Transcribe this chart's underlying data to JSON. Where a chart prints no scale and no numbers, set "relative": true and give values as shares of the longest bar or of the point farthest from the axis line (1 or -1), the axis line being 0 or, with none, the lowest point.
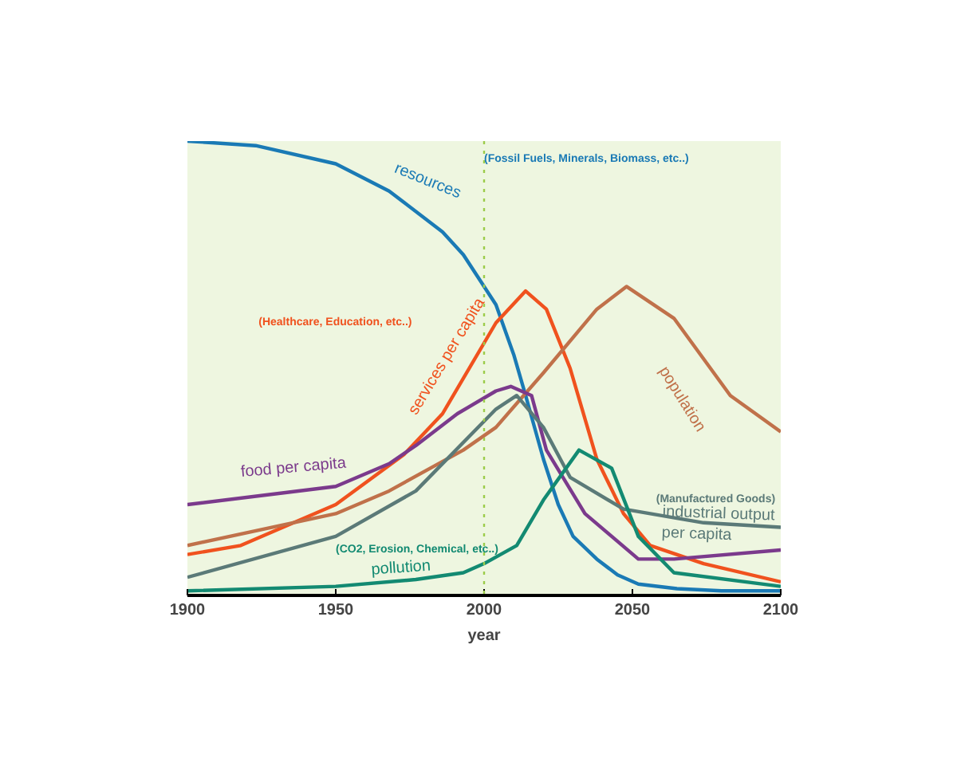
{
  "chart_data": {
    "type": "line",
    "relative": true,
    "xlabel": "year",
    "xlim": [
      1900,
      2100
    ],
    "xticks": [
      1900,
      1950,
      2000,
      2050,
      2100
    ],
    "grid": false,
    "legend": false,
    "line_style": "solid",
    "marker": "none",
    "series": [
      {
        "name": "resources",
        "color": "#1a7ab5",
        "x": [
          1900,
          1923,
          1950,
          1968,
          1986,
          1993,
          2004,
          2010,
          2014,
          2020,
          2025,
          2030,
          2038,
          2045,
          2052,
          2065,
          2080,
          2100
        ],
        "values": [
          1.0,
          0.99,
          0.95,
          0.89,
          0.8,
          0.75,
          0.64,
          0.53,
          0.44,
          0.3,
          0.2,
          0.13,
          0.08,
          0.045,
          0.025,
          0.015,
          0.01,
          0.01
        ]
      },
      {
        "name": "services per capita",
        "color": "#f0521e",
        "x": [
          1900,
          1918,
          1950,
          1973,
          1986,
          2004,
          2014,
          2021,
          2029,
          2038,
          2047,
          2056,
          2074,
          2100
        ],
        "values": [
          0.09,
          0.11,
          0.2,
          0.31,
          0.4,
          0.6,
          0.67,
          0.63,
          0.5,
          0.3,
          0.18,
          0.11,
          0.07,
          0.03
        ]
      },
      {
        "name": "population",
        "color": "#c0714a",
        "x": [
          1900,
          1950,
          1968,
          1993,
          2004,
          2020,
          2038,
          2048,
          2064,
          2083,
          2100
        ],
        "values": [
          0.11,
          0.18,
          0.23,
          0.32,
          0.37,
          0.49,
          0.63,
          0.68,
          0.61,
          0.44,
          0.36
        ]
      },
      {
        "name": "food per capita",
        "color": "#7b3a8c",
        "x": [
          1900,
          1950,
          1968,
          1977,
          1991,
          2004,
          2009,
          2016,
          2021,
          2034,
          2052,
          2064,
          2100
        ],
        "values": [
          0.2,
          0.24,
          0.29,
          0.33,
          0.4,
          0.45,
          0.46,
          0.44,
          0.32,
          0.18,
          0.08,
          0.08,
          0.1
        ]
      },
      {
        "name": "industrial output per capita",
        "color": "#5b7a78",
        "x": [
          1900,
          1950,
          1977,
          2004,
          2011,
          2020,
          2029,
          2047,
          2074,
          2100
        ],
        "values": [
          0.04,
          0.13,
          0.23,
          0.41,
          0.44,
          0.37,
          0.26,
          0.19,
          0.16,
          0.15
        ]
      },
      {
        "name": "pollution",
        "color": "#138a72",
        "x": [
          1900,
          1950,
          1977,
          1993,
          2000,
          2011,
          2020,
          2032,
          2043,
          2052,
          2064,
          2100
        ],
        "values": [
          0.01,
          0.02,
          0.035,
          0.05,
          0.07,
          0.11,
          0.21,
          0.32,
          0.28,
          0.13,
          0.05,
          0.02
        ]
      }
    ],
    "ref_lines": [
      {
        "axis": "x",
        "value": 2000,
        "color": "#9ccc4a",
        "line_style": "dotted"
      }
    ],
    "annotations": [
      "(Fossil Fuels, Minerals, Biomass, etc..)",
      "(Healthcare, Education, etc..)",
      "(CO2, Erosion, Chemical, etc..)",
      "(Manufactured Goods)"
    ]
  }
}
